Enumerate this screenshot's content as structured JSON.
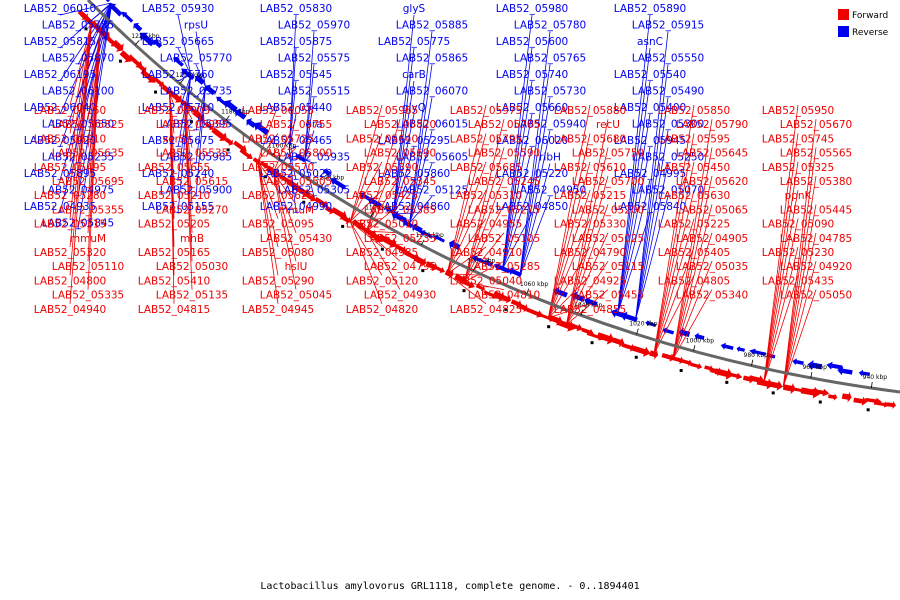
{
  "caption": "Lactobacillus amylovorus GRL1118, complete genome. - 0..1894401",
  "legend": [
    {
      "label": "Forward",
      "color": "#ee0000"
    },
    {
      "label": "Reverse",
      "color": "#0000ee"
    }
  ],
  "colors": {
    "forward": "#ee0000",
    "reverse": "#0000ee",
    "backbone": "#666666"
  },
  "ticks": [
    "1220 kbp",
    "1200 kbp",
    "1180 kbp",
    "1160 kbp",
    "1140 kbp",
    "1120 kbp",
    "1100 kbp",
    "1080 kbp",
    "1060 kbp",
    "1040 kbp",
    "1020 kbp",
    "1000 kbp",
    "980 kbp",
    "960 kbp",
    "940 kbp"
  ],
  "reverse_labels": [
    "LAB52_06010",
    "LAB52_05930",
    "LAB52_05830",
    "glyS",
    "LAB52_05980",
    "LAB52_05890",
    "LAB52_05785",
    "rpsU",
    "LAB52_05970",
    "LAB52_05885",
    "LAB52_05780",
    "LAB52_05915",
    "LAB52_05815",
    "LAB52_05665",
    "LAB52_05875",
    "LAB52_05775",
    "LAB52_05600",
    "asnC",
    "LAB52_05870",
    "LAB52_05770",
    "LAB52_05575",
    "LAB52_05865",
    "LAB52_05765",
    "LAB52_05550",
    "LAB52_06195",
    "LAB52_05760",
    "LAB52_05545",
    "carB",
    "LAB52_05740",
    "LAB52_05540",
    "LAB52_06100",
    "LAB52_05735",
    "LAB52_05515",
    "LAB52_06070",
    "LAB52_05730",
    "LAB52_05490",
    "LAB52_06040",
    "LAB52_05710",
    "LAB52_05440",
    "glyQ",
    "LAB52_05660",
    "LAB52_05400",
    "LAB52_05650",
    "LAB52_05395",
    "era",
    "LAB52_06015",
    "LAB52_05940",
    "LAB52_05300",
    "LAB52_05920",
    "LAB52_05675",
    "LAB52_05465",
    "LAB52_05295",
    "LAB52_06020",
    "LAB52_05945",
    "LAB52_05255",
    "LAB52_05985",
    "LAB52_05935",
    "LAB52_05605",
    "ribH",
    "LAB52_05250",
    "LAB52_05895",
    "LAB52_05240",
    "LAB52_05020",
    "LAB52_05860",
    "LAB52_05220",
    "LAB52_04995",
    "LAB52_04975",
    "LAB52_05900",
    "LAB52_05305",
    "LAB52_05125",
    "LAB52_04950",
    "LAB52_05070",
    "LAB52_04935",
    "LAB52_05155",
    "LAB52_04990",
    "LAB52_04860",
    "LAB52_04850",
    "LAB52_05840",
    "LAB52_05845"
  ],
  "forward_labels": [
    "LAB52_06150",
    "LAB52_06005",
    "LAB52_06055",
    "LAB52_05965",
    "LAB52_05975",
    "LAB52_05880",
    "LAB52_05850",
    "LAB52_05950",
    "LAB52_05825",
    "LAB52_05955",
    "LAB52_05755",
    "LAB52_05820",
    "LAB52_05705",
    "recU",
    "LAB52_05790",
    "LAB52_05670",
    "LAB52_05910",
    "xerS",
    "LAB52_05725",
    "LAB52_05640",
    "LAB52_05795",
    "LAB52_05680",
    "LAB52_05595",
    "LAB52_05745",
    "LAB52_05635",
    "LAB52_05535",
    "LAB52_05800",
    "LAB52_05690",
    "LAB52_05590",
    "LAB52_05750",
    "LAB52_05645",
    "LAB52_05565",
    "LAB52_05495",
    "LAB52_05655",
    "LAB52_05570",
    "LAB52_05390",
    "LAB52_05685",
    "LAB52_05610",
    "LAB52_05450",
    "LAB52_05325",
    "LAB52_05695",
    "LAB52_05615",
    "LAB52_05505",
    "LAB52_05345",
    "LAB52_05245",
    "LAB52_05700",
    "LAB52_05620",
    "LAB52_05380",
    "LAB52_05280",
    "LAB52_05210",
    "LAB52_05625",
    "LAB52_05425",
    "LAB52_05310",
    "LAB52_05215",
    "LAB52_05630",
    "ppnK",
    "LAB52_05355",
    "LAB52_05270",
    "mmuM",
    "LAB52_05385",
    "LAB52_05275",
    "LAB52_05200",
    "LAB52_05065",
    "LAB52_05445",
    "LAB52_05315",
    "LAB52_05205",
    "LAB52_05095",
    "LAB52_05010",
    "LAB52_04955",
    "LAB52_05330",
    "LAB52_05225",
    "LAB52_05090",
    "mmuM",
    "mhB",
    "LAB52_05430",
    "LAB52_05235",
    "LAB52_05105",
    "LAB52_05025",
    "LAB52_04905",
    "LAB52_04785",
    "LAB52_05320",
    "LAB52_05165",
    "LAB52_05080",
    "LAB52_04985",
    "LAB52_04910",
    "LAB52_04790",
    "LAB52_05405",
    "LAB52_05230",
    "LAB52_05110",
    "LAB52_05030",
    "hslU",
    "LAB52_04795",
    "LAB52_05285",
    "LAB52_05115",
    "LAB52_05035",
    "LAB52_04920",
    "LAB52_04800",
    "LAB52_05410",
    "LAB52_05290",
    "LAB52_05120",
    "LAB52_05040",
    "LAB52_04925",
    "LAB52_04805",
    "LAB52_05435",
    "LAB52_05335",
    "LAB52_05135",
    "LAB52_05045",
    "LAB52_04930",
    "LAB52_04810",
    "LAB52_05455",
    "LAB52_05340",
    "LAB52_05050",
    "LAB52_04940",
    "LAB52_04815",
    "LAB52_04945",
    "LAB52_04820",
    "LAB52_04825",
    "LAB52_04855"
  ]
}
